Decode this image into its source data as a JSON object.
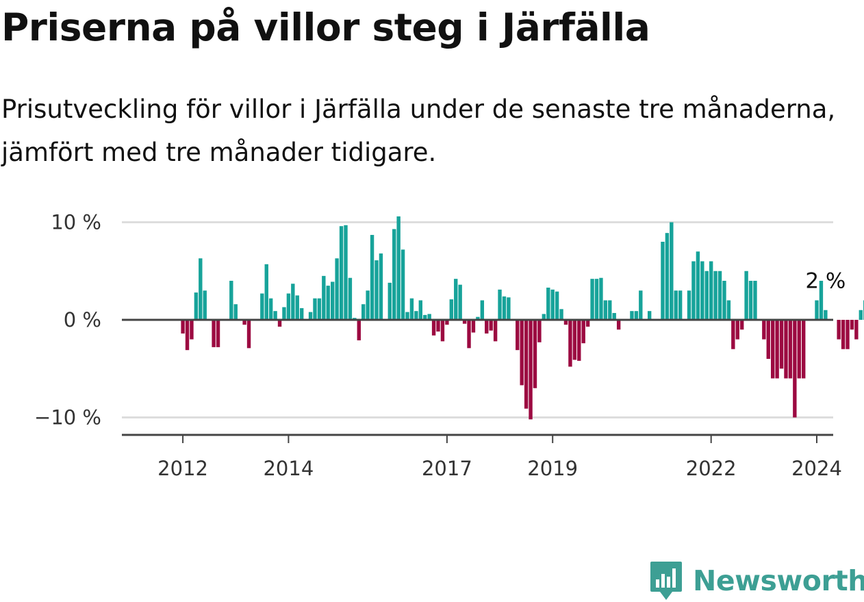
{
  "title": "Priserna på villor steg i Järfälla",
  "subtitle": "Prisutveckling för villor i Järfälla under de senaste tre månaderna, jämfört med tre månader tidigare.",
  "brand": {
    "name": "Newsworthy",
    "icon": "newsworthy-chart-badge-icon"
  },
  "colors": {
    "positive": "#17a39a",
    "negative": "#9c0a41",
    "grid": "#dddddd",
    "axis": "#444444"
  },
  "chart_data": {
    "type": "bar",
    "title": "Priserna på villor steg i Järfälla",
    "subtitle": "Prisutveckling för villor i Järfälla under de senaste tre månaderna, jämfört med tre månader tidigare.",
    "x_start": "2011-07",
    "x_end": "2024-12",
    "x_step": "month",
    "ylim": [
      -12,
      12
    ],
    "yticks": [
      {
        "value": 10,
        "label": "10 %"
      },
      {
        "value": 0,
        "label": "0 %"
      },
      {
        "value": -10,
        "label": "−10 %"
      }
    ],
    "xticks": [
      {
        "value": "2012-01",
        "label": "2012"
      },
      {
        "value": "2014-01",
        "label": "2014"
      },
      {
        "value": "2017-01",
        "label": "2017"
      },
      {
        "value": "2019-01",
        "label": "2019"
      },
      {
        "value": "2022-01",
        "label": "2022"
      },
      {
        "value": "2024-01",
        "label": "2024"
      }
    ],
    "grid": true,
    "series": [
      {
        "values": [
          0,
          0,
          0,
          0,
          0,
          0,
          -1.4,
          -3.1,
          -2,
          2.8,
          6.3,
          3,
          0,
          -2.8,
          -2.8,
          0,
          0,
          4,
          1.6,
          0,
          -0.5,
          -2.9,
          0,
          0,
          2.7,
          5.7,
          2.2,
          0.9,
          -0.7,
          1.3,
          2.7,
          3.7,
          2.5,
          1.2,
          0,
          0.8,
          2.2,
          2.2,
          4.5,
          3.5,
          3.9,
          6.3,
          9.6,
          9.7,
          4.3,
          0.2,
          -2.1,
          1.6,
          3,
          8.7,
          6.1,
          6.8,
          0,
          3.8,
          9.3,
          10.6,
          7.2,
          0.8,
          2.2,
          0.9,
          2,
          0.5,
          0.6,
          -1.6,
          -1.2,
          -2.2,
          -0.5,
          2.1,
          4.2,
          3.6,
          -0.4,
          -2.9,
          -1.3,
          0.3,
          2,
          -1.4,
          -1.1,
          -2.2,
          3.1,
          2.4,
          2.3,
          0,
          -3.1,
          -6.7,
          -9.1,
          -10.2,
          -7,
          -2.3,
          0.6,
          3.3,
          3.1,
          2.9,
          1.1,
          -0.5,
          -4.8,
          -4.1,
          -4.2,
          -2.4,
          -0.7,
          4.2,
          4.2,
          4.3,
          2,
          2,
          0.7,
          -1,
          0,
          0,
          0.9,
          0.9,
          3,
          0,
          0.9,
          0,
          0,
          8,
          8.9,
          10,
          3,
          3,
          0,
          3,
          6,
          7,
          6,
          5,
          6,
          5,
          5,
          4,
          2,
          -3,
          -2,
          -1,
          5,
          4,
          4,
          0,
          -2,
          -4,
          -6,
          -6,
          -5,
          -6,
          -6,
          -10,
          -6,
          -6,
          0,
          0,
          2,
          4,
          1,
          0,
          0,
          -2,
          -3,
          -3,
          -1,
          -2,
          1,
          2
        ]
      }
    ],
    "annotation": {
      "label": "2 %",
      "value": 2,
      "x": "2024-03"
    }
  }
}
